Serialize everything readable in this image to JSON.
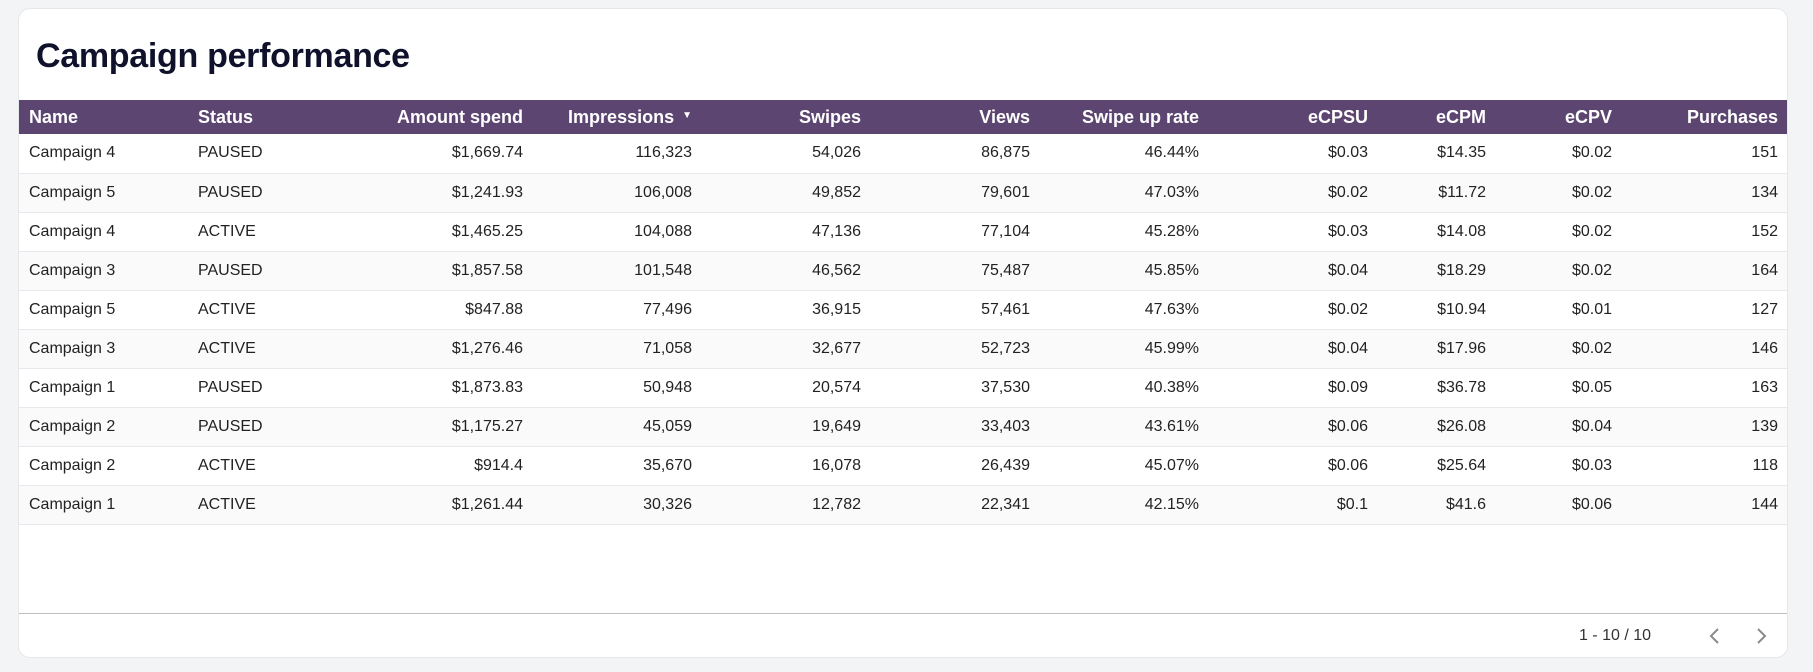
{
  "title": "Campaign performance",
  "columns": [
    {
      "label": "Name"
    },
    {
      "label": "Status"
    },
    {
      "label": "Amount spend"
    },
    {
      "label": "Impressions"
    },
    {
      "label": "Swipes"
    },
    {
      "label": "Views"
    },
    {
      "label": "Swipe up rate"
    },
    {
      "label": "eCPSU"
    },
    {
      "label": "eCPM"
    },
    {
      "label": "eCPV"
    },
    {
      "label": "Purchases"
    }
  ],
  "sort": {
    "column": "Impressions",
    "direction": "desc",
    "icon": "sort-desc-icon"
  },
  "rows": [
    [
      "Campaign 4",
      "PAUSED",
      "$1,669.74",
      "116,323",
      "54,026",
      "86,875",
      "46.44%",
      "$0.03",
      "$14.35",
      "$0.02",
      "151"
    ],
    [
      "Campaign 5",
      "PAUSED",
      "$1,241.93",
      "106,008",
      "49,852",
      "79,601",
      "47.03%",
      "$0.02",
      "$11.72",
      "$0.02",
      "134"
    ],
    [
      "Campaign 4",
      "ACTIVE",
      "$1,465.25",
      "104,088",
      "47,136",
      "77,104",
      "45.28%",
      "$0.03",
      "$14.08",
      "$0.02",
      "152"
    ],
    [
      "Campaign 3",
      "PAUSED",
      "$1,857.58",
      "101,548",
      "46,562",
      "75,487",
      "45.85%",
      "$0.04",
      "$18.29",
      "$0.02",
      "164"
    ],
    [
      "Campaign 5",
      "ACTIVE",
      "$847.88",
      "77,496",
      "36,915",
      "57,461",
      "47.63%",
      "$0.02",
      "$10.94",
      "$0.01",
      "127"
    ],
    [
      "Campaign 3",
      "ACTIVE",
      "$1,276.46",
      "71,058",
      "32,677",
      "52,723",
      "45.99%",
      "$0.04",
      "$17.96",
      "$0.02",
      "146"
    ],
    [
      "Campaign 1",
      "PAUSED",
      "$1,873.83",
      "50,948",
      "20,574",
      "37,530",
      "40.38%",
      "$0.09",
      "$36.78",
      "$0.05",
      "163"
    ],
    [
      "Campaign 2",
      "PAUSED",
      "$1,175.27",
      "45,059",
      "19,649",
      "33,403",
      "43.61%",
      "$0.06",
      "$26.08",
      "$0.04",
      "139"
    ],
    [
      "Campaign 2",
      "ACTIVE",
      "$914.4",
      "35,670",
      "16,078",
      "26,439",
      "45.07%",
      "$0.06",
      "$25.64",
      "$0.03",
      "118"
    ],
    [
      "Campaign 1",
      "ACTIVE",
      "$1,261.44",
      "30,326",
      "12,782",
      "22,341",
      "42.15%",
      "$0.1",
      "$41.6",
      "$0.06",
      "144"
    ]
  ],
  "pagination": {
    "range_text": "1 - 10 / 10",
    "prev_icon": "chevron-left-icon",
    "next_icon": "chevron-right-icon"
  },
  "colors": {
    "header_bg": "#5c4571",
    "header_text": "#ffffff",
    "title_text": "#10122b"
  }
}
